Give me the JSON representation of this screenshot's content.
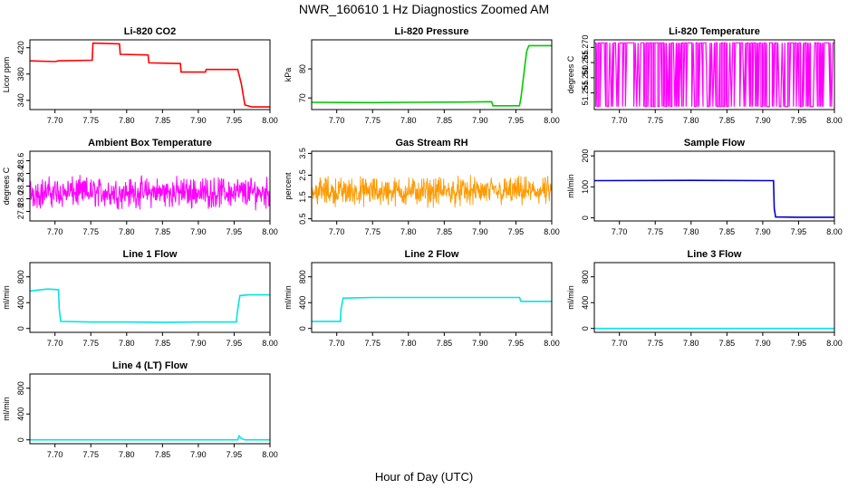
{
  "figure": {
    "title": "NWR_160610  1 Hz Diagnostics Zoomed AM",
    "xlabel": "Hour of Day (UTC)"
  },
  "chart_data": [
    {
      "type": "line",
      "title": "Li-820 CO2",
      "ylabel": "Licor ppm",
      "color": "#ff0000",
      "xlim": [
        7.665,
        8.0
      ],
      "ylim": [
        326,
        432
      ],
      "xticks": [
        "7.70",
        "7.75",
        "7.80",
        "7.85",
        "7.90",
        "7.95",
        "8.00"
      ],
      "yticks": [
        "340",
        "380",
        "420"
      ],
      "series": [
        {
          "x": [
            7.665,
            7.7,
            7.705,
            7.752,
            7.753,
            7.79,
            7.791,
            7.83,
            7.831,
            7.875,
            7.876,
            7.91,
            7.911,
            7.955,
            7.96,
            7.965,
            7.975,
            8.0
          ],
          "y": [
            400,
            399,
            400,
            401,
            427,
            426,
            410,
            409,
            397,
            396,
            383,
            383,
            387,
            387,
            365,
            333,
            330,
            330
          ]
        }
      ]
    },
    {
      "type": "line",
      "title": "Li-820 Pressure",
      "ylabel": "kPa",
      "color": "#00cc00",
      "xlim": [
        7.665,
        8.0
      ],
      "ylim": [
        66,
        90
      ],
      "xticks": [
        "7.70",
        "7.75",
        "7.80",
        "7.85",
        "7.90",
        "7.95",
        "8.00"
      ],
      "yticks": [
        "70",
        "80"
      ],
      "series": [
        {
          "x": [
            7.665,
            7.75,
            7.8,
            7.875,
            7.916,
            7.918,
            7.955,
            7.957,
            7.962,
            7.965,
            7.968,
            7.975,
            8.0
          ],
          "y": [
            68.5,
            68.4,
            68.5,
            68.6,
            68.7,
            67.3,
            67.3,
            70,
            80,
            86,
            88,
            88,
            88
          ]
        }
      ]
    },
    {
      "type": "line",
      "title": "Li-820 Temperature",
      "ylabel": "degrees C",
      "color": "#ff00ff",
      "xlim": [
        7.665,
        8.0
      ],
      "ylim": [
        51.2495,
        51.2725
      ],
      "xticks": [
        "7.70",
        "7.75",
        "7.80",
        "7.85",
        "7.90",
        "7.95",
        "8.00"
      ],
      "yticks": [
        "51.255",
        "51.260",
        "51.265",
        "51.270"
      ],
      "series": [
        {
          "pattern": "toggles between 51.2505 and 51.2715",
          "bands": [
            51.2505,
            51.2715
          ]
        }
      ]
    },
    {
      "type": "line",
      "title": "Ambient Box Temperature",
      "ylabel": "degrees C",
      "color": "#ff00ff",
      "xlim": [
        7.665,
        8.0
      ],
      "ylim": [
        27.65,
        28.75
      ],
      "xticks": [
        "7.70",
        "7.75",
        "7.80",
        "7.85",
        "7.90",
        "7.95",
        "8.00"
      ],
      "yticks": [
        "27.8",
        "28.0",
        "28.2",
        "28.4",
        "28.6"
      ],
      "series": [
        {
          "pattern": "noisy",
          "mean": 28.1,
          "spread": 0.18
        }
      ]
    },
    {
      "type": "scatter",
      "title": "Gas Stream RH",
      "ylabel": "percent",
      "color": "#ff9900",
      "xlim": [
        7.665,
        8.0
      ],
      "ylim": [
        0.4,
        3.6
      ],
      "xticks": [
        "7.70",
        "7.75",
        "7.80",
        "7.85",
        "7.90",
        "7.95",
        "8.00"
      ],
      "yticks": [
        "0.5",
        "1.5",
        "2.5",
        "3.5"
      ],
      "series": [
        {
          "pattern": "noisy",
          "mean": 1.75,
          "spread": 0.5
        }
      ]
    },
    {
      "type": "line",
      "title": "Sample Flow",
      "ylabel": "ml/min",
      "color": "#0000cc",
      "xlim": [
        7.665,
        8.0
      ],
      "ylim": [
        -10,
        215
      ],
      "xticks": [
        "7.70",
        "7.75",
        "7.80",
        "7.85",
        "7.90",
        "7.95",
        "8.00"
      ],
      "yticks": [
        "0",
        "100",
        "200"
      ],
      "series": [
        {
          "x": [
            7.665,
            7.8,
            7.915,
            7.916,
            7.918,
            7.95,
            8.0
          ],
          "y": [
            120,
            121,
            120,
            30,
            3,
            2,
            2
          ]
        }
      ]
    },
    {
      "type": "line",
      "title": "Line 1 Flow",
      "ylabel": "ml/min",
      "color": "#00e5e5",
      "xlim": [
        7.665,
        8.0
      ],
      "ylim": [
        -60,
        1020
      ],
      "xticks": [
        "7.70",
        "7.75",
        "7.80",
        "7.85",
        "7.90",
        "7.95",
        "8.00"
      ],
      "yticks": [
        "0",
        "400",
        "800"
      ],
      "series": [
        {
          "x": [
            7.665,
            7.68,
            7.69,
            7.705,
            7.706,
            7.708,
            7.75,
            7.8,
            7.85,
            7.9,
            7.953,
            7.955,
            7.958,
            7.97,
            8.0
          ],
          "y": [
            580,
            600,
            610,
            600,
            300,
            110,
            100,
            100,
            95,
            100,
            100,
            300,
            510,
            520,
            520
          ]
        }
      ]
    },
    {
      "type": "line",
      "title": "Line 2 Flow",
      "ylabel": "ml/min",
      "color": "#00e5e5",
      "xlim": [
        7.665,
        8.0
      ],
      "ylim": [
        -60,
        1020
      ],
      "xticks": [
        "7.70",
        "7.75",
        "7.80",
        "7.85",
        "7.90",
        "7.95",
        "8.00"
      ],
      "yticks": [
        "0",
        "400",
        "800"
      ],
      "series": [
        {
          "x": [
            7.665,
            7.705,
            7.706,
            7.709,
            7.75,
            7.8,
            7.85,
            7.9,
            7.955,
            7.957,
            7.97,
            8.0
          ],
          "y": [
            110,
            110,
            300,
            470,
            480,
            480,
            480,
            480,
            480,
            420,
            420,
            420
          ]
        }
      ]
    },
    {
      "type": "line",
      "title": "Line 3 Flow",
      "ylabel": "ml/min",
      "color": "#00e5e5",
      "xlim": [
        7.665,
        8.0
      ],
      "ylim": [
        -60,
        1020
      ],
      "xticks": [
        "7.70",
        "7.75",
        "7.80",
        "7.85",
        "7.90",
        "7.95",
        "8.00"
      ],
      "yticks": [
        "0",
        "400",
        "800"
      ],
      "series": [
        {
          "x": [
            7.665,
            8.0
          ],
          "y": [
            0,
            0
          ]
        }
      ]
    },
    {
      "type": "line",
      "title": "Line 4 (LT) Flow",
      "ylabel": "ml/min",
      "color": "#00e5e5",
      "xlim": [
        7.665,
        8.0
      ],
      "ylim": [
        -60,
        1020
      ],
      "xticks": [
        "7.70",
        "7.75",
        "7.80",
        "7.85",
        "7.90",
        "7.95",
        "8.00"
      ],
      "yticks": [
        "0",
        "400",
        "800"
      ],
      "series": [
        {
          "x": [
            7.665,
            7.95,
            7.955,
            7.957,
            7.96,
            7.965,
            8.0
          ],
          "y": [
            0,
            0,
            0,
            60,
            20,
            0,
            0
          ]
        }
      ]
    }
  ]
}
